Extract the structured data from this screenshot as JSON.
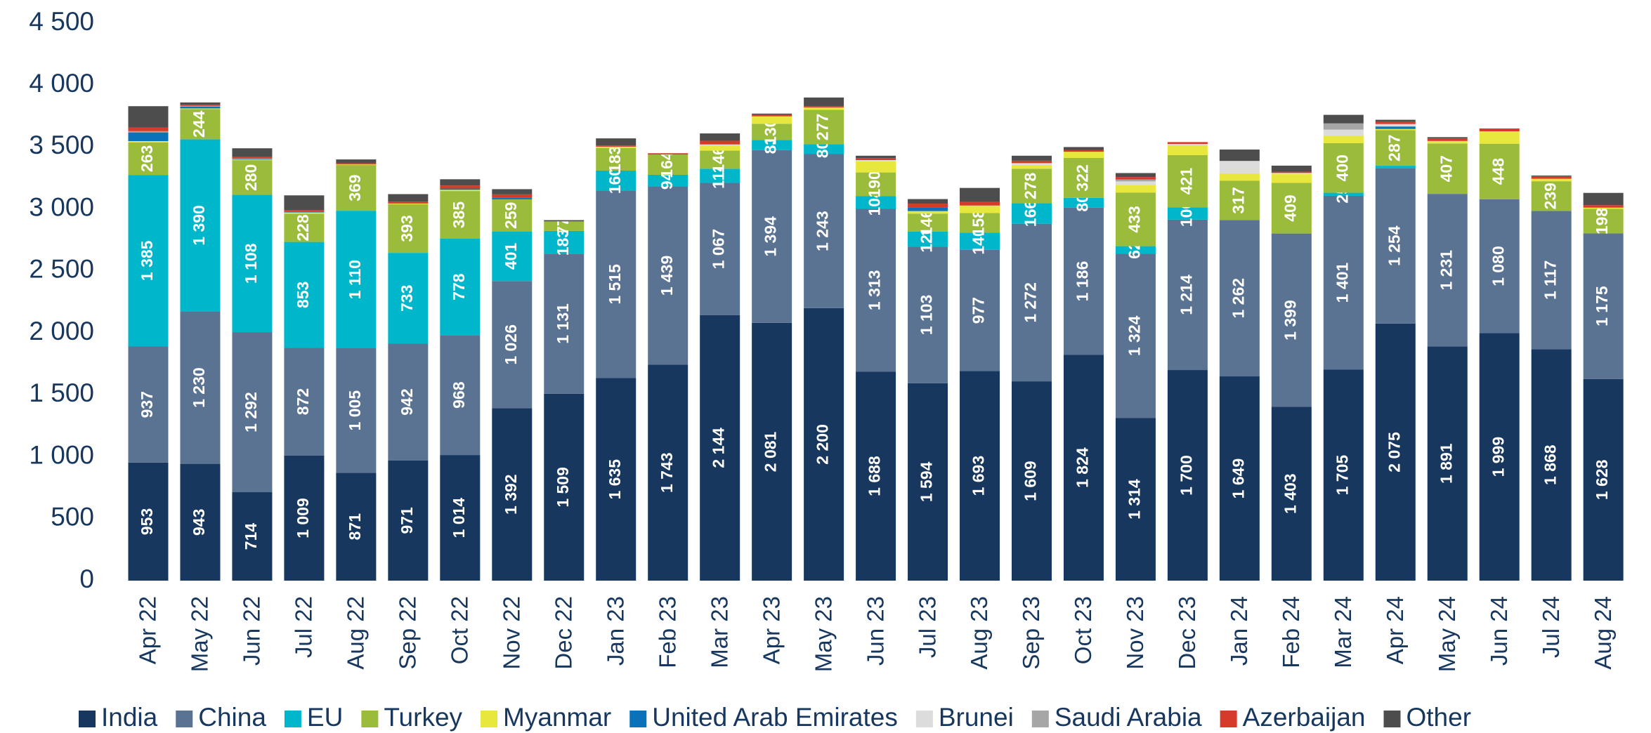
{
  "chart_data": {
    "type": "stacked_bar",
    "categories": [
      "Apr 22",
      "May 22",
      "Jun 22",
      "Jul 22",
      "Aug 22",
      "Sep 22",
      "Oct 22",
      "Nov 22",
      "Dec 22",
      "Jan 23",
      "Feb 23",
      "Mar 23",
      "Apr 23",
      "May 23",
      "Jun 23",
      "Jul 23",
      "Aug 23",
      "Sep 23",
      "Oct 23",
      "Nov 23",
      "Dec 23",
      "Jan 24",
      "Feb 24",
      "Mar 24",
      "Apr 24",
      "May 24",
      "Jun 24",
      "Jul 24",
      "Aug 24"
    ],
    "ylim": [
      0,
      4500
    ],
    "yticks": [
      0,
      500,
      {
        "value": 1000,
        "label": "1 000"
      },
      {
        "value": 1500,
        "label": "1 500"
      },
      {
        "value": 2000,
        "label": "2 000"
      },
      {
        "value": 2500,
        "label": "2 500"
      },
      {
        "value": 3000,
        "label": "3 000"
      },
      {
        "value": 3500,
        "label": "3 500"
      },
      {
        "value": 4000,
        "label": "4 000"
      },
      {
        "value": 4500,
        "label": "4 500"
      }
    ],
    "legend": "bottom",
    "series": [
      {
        "name": "India",
        "color": "#17375e",
        "values": [
          953,
          943,
          714,
          1009,
          871,
          971,
          1014,
          1392,
          1509,
          1635,
          1743,
          2144,
          2081,
          2200,
          1688,
          1594,
          1693,
          1609,
          1824,
          1314,
          1700,
          1649,
          1403,
          1705,
          2075,
          1891,
          1999,
          1868,
          1628
        ],
        "value_labels": [
          "953",
          "943",
          "714",
          "1 009",
          "871",
          "971",
          "1 014",
          "1 392",
          "1 509",
          "1 635",
          "1 743",
          "2 144",
          "2 081",
          "2 200",
          "1 688",
          "1 594",
          "1 693",
          "1 609",
          "1 824",
          "1 314",
          "1 700",
          "1 649",
          "1 403",
          "1 705",
          "2 075",
          "1 891",
          "1 999",
          "1 868",
          "1 628"
        ]
      },
      {
        "name": "China",
        "color": "#5b7393",
        "values": [
          937,
          1230,
          1292,
          872,
          1005,
          942,
          968,
          1026,
          1131,
          1515,
          1439,
          1067,
          1394,
          1243,
          1313,
          1103,
          977,
          1272,
          1186,
          1324,
          1214,
          1262,
          1399,
          1401,
          1254,
          1231,
          1080,
          1117,
          1175
        ],
        "value_labels": [
          "937",
          "1 230",
          "1 292",
          "872",
          "1 005",
          "942",
          "968",
          "1 026",
          "1 131",
          "1 515",
          "1 439",
          "1 067",
          "1 394",
          "1 243",
          "1 313",
          "1 103",
          "977",
          "1 272",
          "1 186",
          "1 324",
          "1 214",
          "1 262",
          "1 399",
          "1 401",
          "1 254",
          "1 231",
          "1 080",
          "1 117",
          "1 175"
        ]
      },
      {
        "name": "EU",
        "color": "#00b6cb",
        "values": [
          1385,
          1390,
          1108,
          853,
          1110,
          733,
          778,
          401,
          183,
          160,
          94,
          114,
          83,
          80,
          104,
          120,
          140,
          166,
          80,
          62,
          100,
          0,
          0,
          25,
          20,
          0,
          0,
          0,
          0
        ],
        "value_labels": [
          "1 385",
          "1 390",
          "1 108",
          "853",
          "1 110",
          "733",
          "778",
          "401",
          "183",
          "160",
          "94",
          "114",
          "83",
          "80",
          "104",
          "120",
          "140",
          "166",
          "80",
          "62",
          "100",
          null,
          null,
          "25",
          null,
          null,
          null,
          null,
          null
        ]
      },
      {
        "name": "Turkey",
        "color": "#9bbb3b",
        "values": [
          263,
          244,
          280,
          228,
          369,
          393,
          385,
          259,
          77,
          183,
          164,
          146,
          130,
          277,
          190,
          146,
          158,
          278,
          322,
          433,
          421,
          317,
          409,
          400,
          287,
          407,
          448,
          239,
          198
        ],
        "value_labels": [
          "263",
          "244",
          "280",
          "228",
          "369",
          "393",
          "385",
          "259",
          "77",
          "183",
          "164",
          "146",
          "130",
          "277",
          "190",
          "146",
          "158",
          "278",
          "322",
          "433",
          "421",
          "317",
          "409",
          "400",
          "287",
          "407",
          "448",
          "239",
          "198"
        ]
      },
      {
        "name": "Myanmar",
        "color": "#e8e83c",
        "values": [
          10,
          5,
          5,
          10,
          5,
          5,
          10,
          0,
          0,
          10,
          0,
          40,
          60,
          20,
          90,
          20,
          60,
          30,
          50,
          60,
          80,
          60,
          70,
          60,
          10,
          20,
          100,
          20,
          10
        ]
      },
      {
        "name": "United Arab Emirates",
        "color": "#0a72b8",
        "values": [
          70,
          15,
          5,
          5,
          0,
          0,
          10,
          15,
          0,
          0,
          0,
          0,
          0,
          0,
          0,
          30,
          0,
          0,
          0,
          0,
          0,
          0,
          0,
          0,
          20,
          0,
          0,
          0,
          0
        ]
      },
      {
        "name": "Brunei",
        "color": "#dcdcdc",
        "values": [
          0,
          0,
          0,
          0,
          0,
          0,
          0,
          0,
          0,
          0,
          0,
          10,
          0,
          0,
          10,
          0,
          0,
          15,
          0,
          30,
          10,
          100,
          10,
          50,
          20,
          0,
          0,
          0,
          0
        ]
      },
      {
        "name": "Saudi Arabia",
        "color": "#a6a6a6",
        "values": [
          10,
          5,
          5,
          0,
          0,
          0,
          0,
          0,
          0,
          0,
          0,
          0,
          0,
          0,
          0,
          0,
          0,
          0,
          0,
          15,
          0,
          0,
          0,
          50,
          0,
          0,
          0,
          0,
          0
        ]
      },
      {
        "name": "Azerbaijan",
        "color": "#d63a2a",
        "values": [
          30,
          10,
          10,
          15,
          10,
          15,
          25,
          25,
          0,
          10,
          10,
          30,
          15,
          10,
          15,
          30,
          30,
          20,
          15,
          20,
          15,
          0,
          10,
          0,
          20,
          20,
          23,
          20,
          20
        ]
      },
      {
        "name": "Other",
        "color": "#4d4d4d",
        "values": [
          172,
          18,
          71,
          118,
          30,
          61,
          50,
          42,
          10,
          57,
          0,
          59,
          7,
          70,
          20,
          37,
          112,
          40,
          23,
          32,
          0,
          92,
          49,
          69,
          14,
          11,
          0,
          6,
          99
        ]
      }
    ]
  }
}
